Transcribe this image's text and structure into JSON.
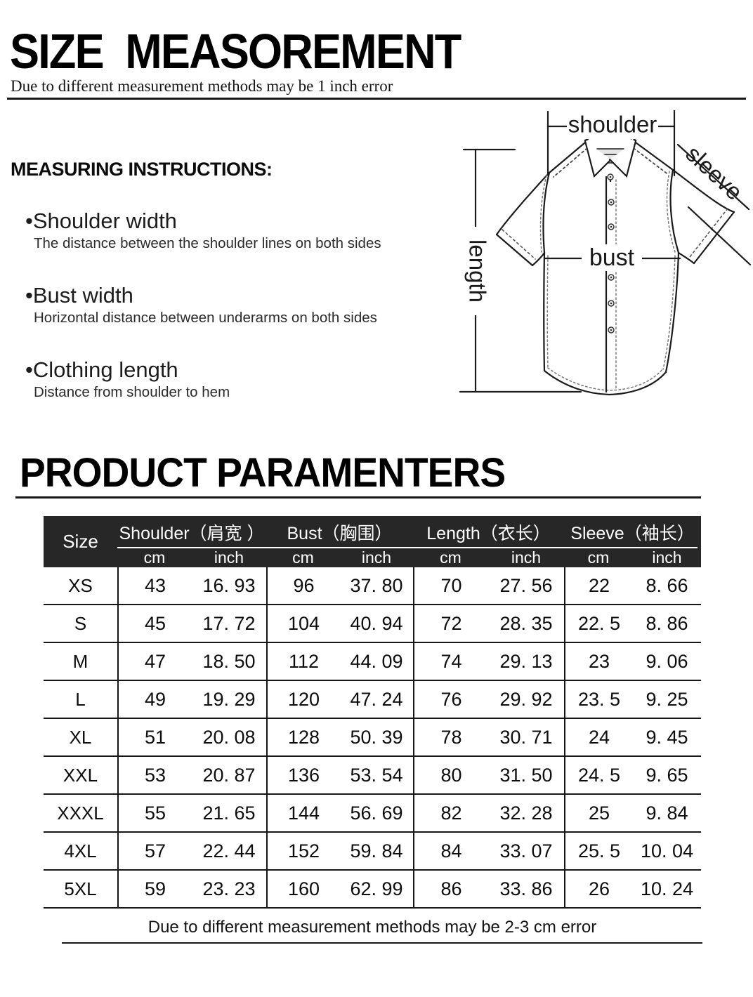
{
  "header": {
    "title": "SIZE  MEASOREMENT",
    "subtitle": "Due to different measurement methods may be 1 inch error"
  },
  "instructions": {
    "heading": "MEASURING INSTRUCTIONS:",
    "items": [
      {
        "term": "•Shoulder width",
        "desc": "The distance between the shoulder lines on both sides"
      },
      {
        "term": "•Bust width",
        "desc": "Horizontal distance between underarms on both sides"
      },
      {
        "term": "•Clothing length",
        "desc": "Distance from shoulder to hem"
      }
    ]
  },
  "diagram": {
    "labels": {
      "shoulder": "shoulder",
      "sleeve": "sleeve",
      "length": "length",
      "bust": "bust"
    }
  },
  "product": {
    "title": "PRODUCT PARAMENTERS"
  },
  "table": {
    "size_header": "Size",
    "groups": [
      {
        "label": "Shoulder（肩宽 ）",
        "units": [
          "cm",
          "inch"
        ]
      },
      {
        "label": "Bust（胸围）",
        "units": [
          "cm",
          "inch"
        ]
      },
      {
        "label": "Length（衣长）",
        "units": [
          "cm",
          "inch"
        ]
      },
      {
        "label": "Sleeve（袖长）",
        "units": [
          "cm",
          "inch"
        ]
      }
    ],
    "rows": [
      {
        "size": "XS",
        "values": [
          "43",
          "16. 93",
          "96",
          "37. 80",
          "70",
          "27. 56",
          "22",
          "8. 66"
        ]
      },
      {
        "size": "S",
        "values": [
          "45",
          "17. 72",
          "104",
          "40. 94",
          "72",
          "28. 35",
          "22. 5",
          "8. 86"
        ]
      },
      {
        "size": "M",
        "values": [
          "47",
          "18. 50",
          "112",
          "44. 09",
          "74",
          "29. 13",
          "23",
          "9. 06"
        ]
      },
      {
        "size": "L",
        "values": [
          "49",
          "19. 29",
          "120",
          "47. 24",
          "76",
          "29. 92",
          "23. 5",
          "9. 25"
        ]
      },
      {
        "size": "XL",
        "values": [
          "51",
          "20. 08",
          "128",
          "50. 39",
          "78",
          "30. 71",
          "24",
          "9. 45"
        ]
      },
      {
        "size": "XXL",
        "values": [
          "53",
          "20. 87",
          "136",
          "53. 54",
          "80",
          "31. 50",
          "24. 5",
          "9. 65"
        ]
      },
      {
        "size": "XXXL",
        "values": [
          "55",
          "21. 65",
          "144",
          "56. 69",
          "82",
          "32. 28",
          "25",
          "9. 84"
        ]
      },
      {
        "size": "4XL",
        "values": [
          "57",
          "22. 44",
          "152",
          "59. 84",
          "84",
          "33. 07",
          "25. 5",
          "10. 04"
        ]
      },
      {
        "size": "5XL",
        "values": [
          "59",
          "23. 23",
          "160",
          "62. 99",
          "86",
          "33. 86",
          "26",
          "10. 24"
        ]
      }
    ],
    "footnote": "Due to different measurement methods may be 2-3 cm error"
  },
  "colors": {
    "table_header_bg": "#272727",
    "line": "#161616",
    "text": "#111111"
  }
}
